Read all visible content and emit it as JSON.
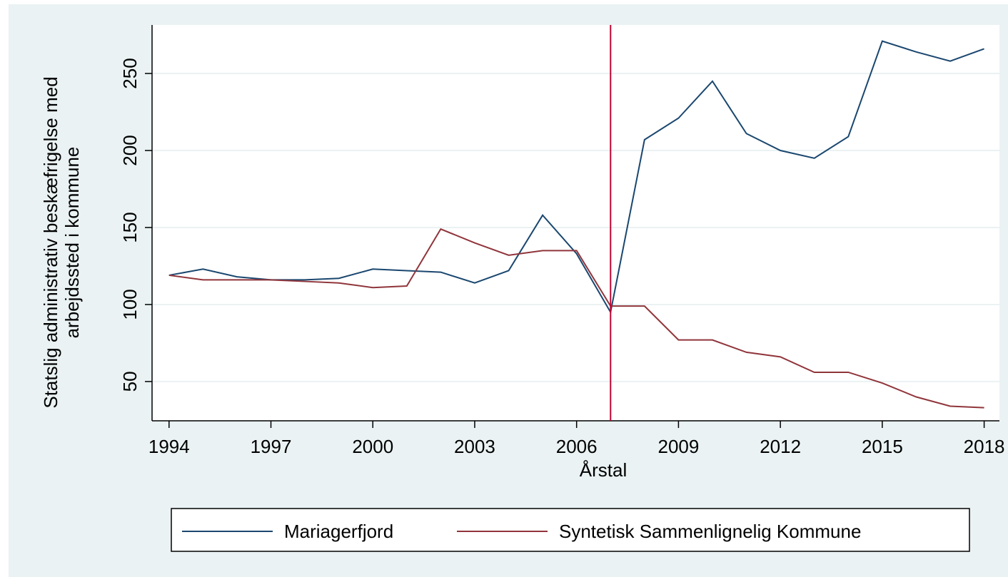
{
  "chart_data": {
    "type": "line",
    "ylabel": [
      "Statslig administrativ beskæfrigelse med",
      "arbejdssted i kommune"
    ],
    "xlabel": "Årstal",
    "x": [
      1994,
      1995,
      1996,
      1997,
      1998,
      1999,
      2000,
      2001,
      2002,
      2003,
      2004,
      2005,
      2006,
      2007,
      2008,
      2009,
      2010,
      2011,
      2012,
      2013,
      2014,
      2015,
      2016,
      2017,
      2018
    ],
    "series": [
      {
        "name": "Mariagerfjord",
        "color": "#1a476f",
        "values": [
          119,
          123,
          118,
          116,
          116,
          117,
          123,
          122,
          121,
          114,
          122,
          158,
          133,
          95,
          207,
          221,
          245,
          211,
          200,
          195,
          209,
          271,
          264,
          258,
          266
        ]
      },
      {
        "name": "Syntetisk Sammenlignelig Kommune",
        "color": "#90353b",
        "values": [
          119,
          116,
          116,
          116,
          115,
          114,
          111,
          112,
          149,
          140,
          132,
          135,
          135,
          99,
          99,
          77,
          77,
          69,
          66,
          56,
          56,
          49,
          40,
          34,
          33
        ]
      }
    ],
    "xlim": [
      1993.5,
      2018.45
    ],
    "xticks": [
      1994,
      1997,
      2000,
      2003,
      2006,
      2009,
      2012,
      2015,
      2018
    ],
    "ylim": [
      24.5,
      281.5
    ],
    "yticks": [
      50,
      100,
      150,
      200,
      250
    ],
    "xline": 2007,
    "xline_color": "#c10534",
    "grid": true,
    "legend": "bottom"
  }
}
